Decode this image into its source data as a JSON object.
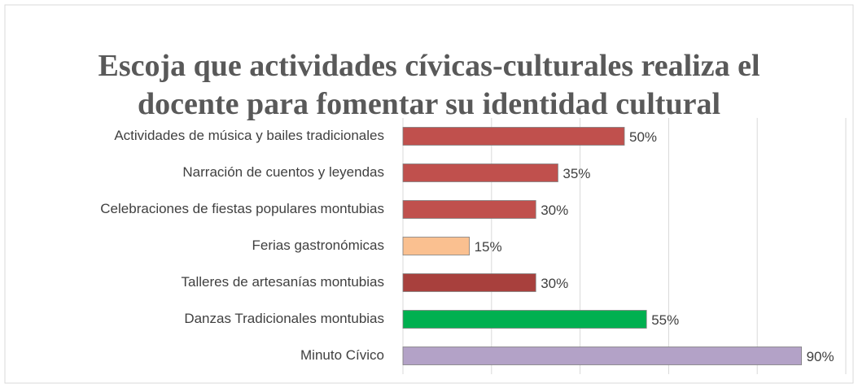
{
  "chart_data": {
    "type": "bar",
    "orientation": "horizontal",
    "title": "Escoja que actividades cívicas-culturales realiza el docente para fomentar su identidad cultural",
    "categories": [
      "Actividades de música y bailes tradicionales",
      "Narración de cuentos y leyendas",
      "Celebraciones de fiestas populares montubias",
      "Ferias gastronómicas",
      "Talleres de artesanías montubias",
      "Danzas Tradicionales montubias",
      "Minuto Cívico"
    ],
    "values": [
      50,
      35,
      30,
      15,
      30,
      55,
      90
    ],
    "value_labels": [
      "50%",
      "35%",
      "30%",
      "15%",
      "30%",
      "55%",
      "90%"
    ],
    "colors": [
      "#c0504d",
      "#c0504d",
      "#c0504d",
      "#fac090",
      "#a8403d",
      "#00b050",
      "#b3a2c7"
    ],
    "xlim": [
      0,
      100
    ],
    "xticks": [
      0,
      20,
      40,
      60,
      80,
      100
    ],
    "grid": true
  }
}
